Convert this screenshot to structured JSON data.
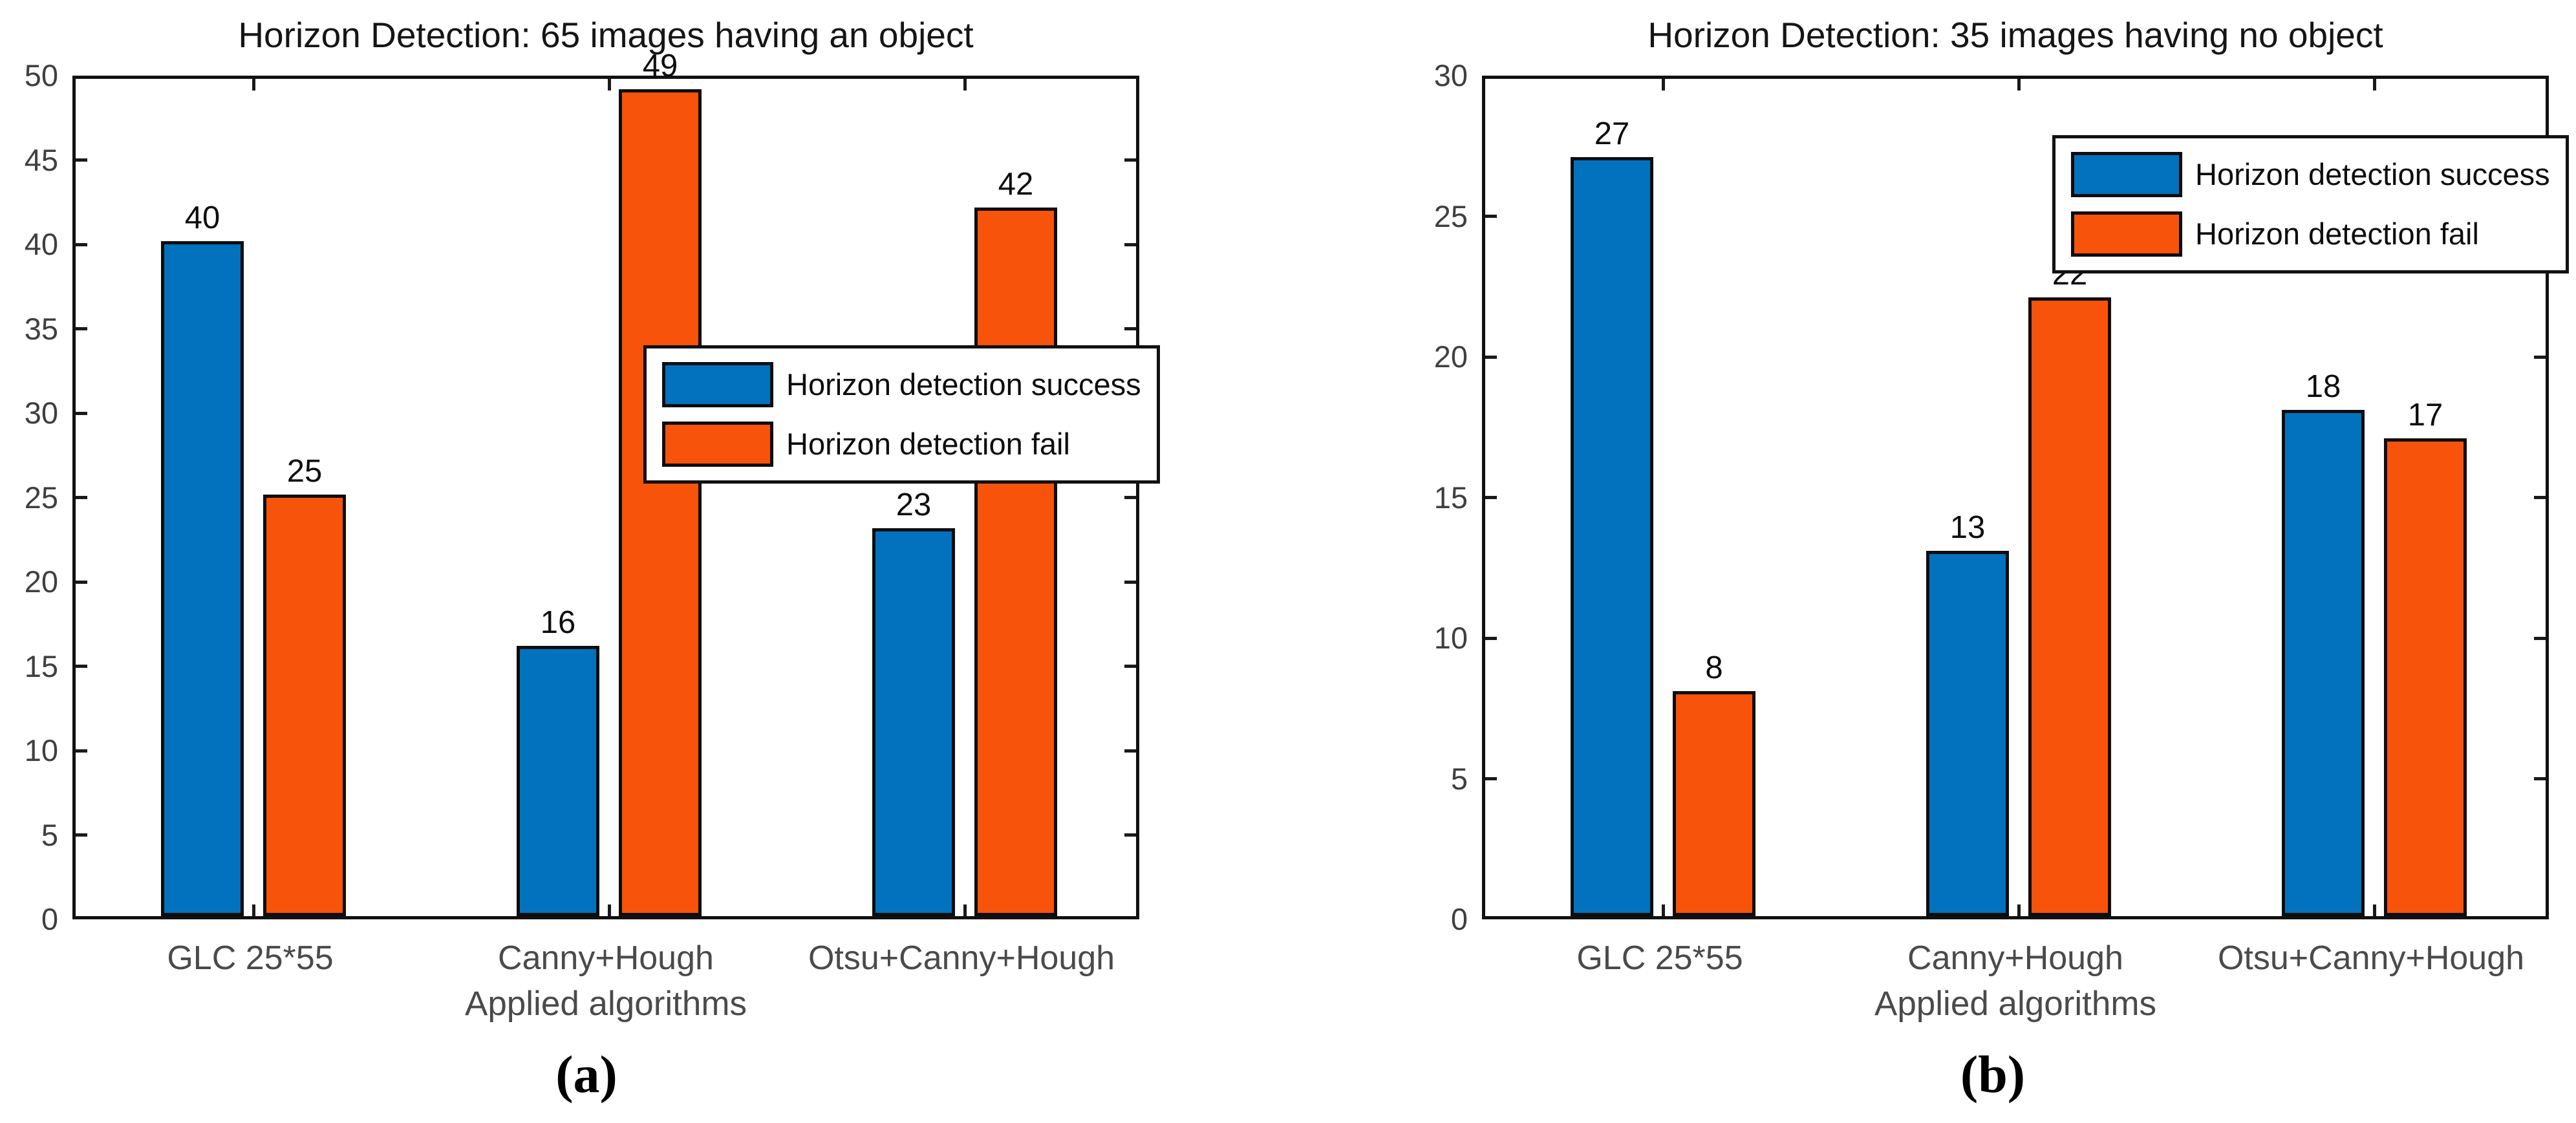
{
  "figure": {
    "background": "#ffffff",
    "panel_captions": [
      "(a)",
      "(b)"
    ]
  },
  "colors": {
    "success_blue": "#0272BE",
    "fail_orange": "#F8530B",
    "axis": "#111111",
    "ytick_label": "#3f3f3f",
    "category_label": "#4a4a4a",
    "value_label": "#0d0d0d"
  },
  "chart_data": [
    {
      "type": "bar",
      "panel_caption": "(a)",
      "title": "Horizon Detection: 65 images having an object",
      "xlabel": "Applied algorithms",
      "ylabel": "",
      "categories": [
        "GLC 25*55",
        "Canny+Hough",
        "Otsu+Canny+Hough"
      ],
      "series": [
        {
          "name": "Horizon detection success",
          "color_key": "success_blue",
          "values": [
            40,
            16,
            23
          ]
        },
        {
          "name": "Horizon detection fail",
          "color_key": "fail_orange",
          "values": [
            25,
            49,
            42
          ]
        }
      ],
      "bar_value_labels": [
        [
          "40",
          "16",
          "23"
        ],
        [
          "25",
          "49",
          "42"
        ]
      ],
      "ylim": [
        0,
        50
      ],
      "ytick_step": 5,
      "ytick_labels": [
        "0",
        "5",
        "10",
        "15",
        "20",
        "25",
        "30",
        "35",
        "40",
        "45",
        "50"
      ],
      "grid": false,
      "legend_loc": "middle right overlay"
    },
    {
      "type": "bar",
      "panel_caption": "(b)",
      "title": "Horizon Detection: 35 images having no object",
      "xlabel": "Applied algorithms",
      "ylabel": "",
      "categories": [
        "GLC 25*55",
        "Canny+Hough",
        "Otsu+Canny+Hough"
      ],
      "series": [
        {
          "name": "Horizon detection success",
          "color_key": "success_blue",
          "values": [
            27,
            13,
            18
          ]
        },
        {
          "name": "Horizon detection fail",
          "color_key": "fail_orange",
          "values": [
            8,
            22,
            17
          ]
        }
      ],
      "bar_value_labels": [
        [
          "27",
          "13",
          "18"
        ],
        [
          "8",
          "22",
          "17"
        ]
      ],
      "ylim": [
        0,
        30
      ],
      "ytick_step": 5,
      "ytick_labels": [
        "0",
        "5",
        "10",
        "15",
        "20",
        "25",
        "30"
      ],
      "grid": false,
      "legend_loc": "upper right"
    }
  ]
}
